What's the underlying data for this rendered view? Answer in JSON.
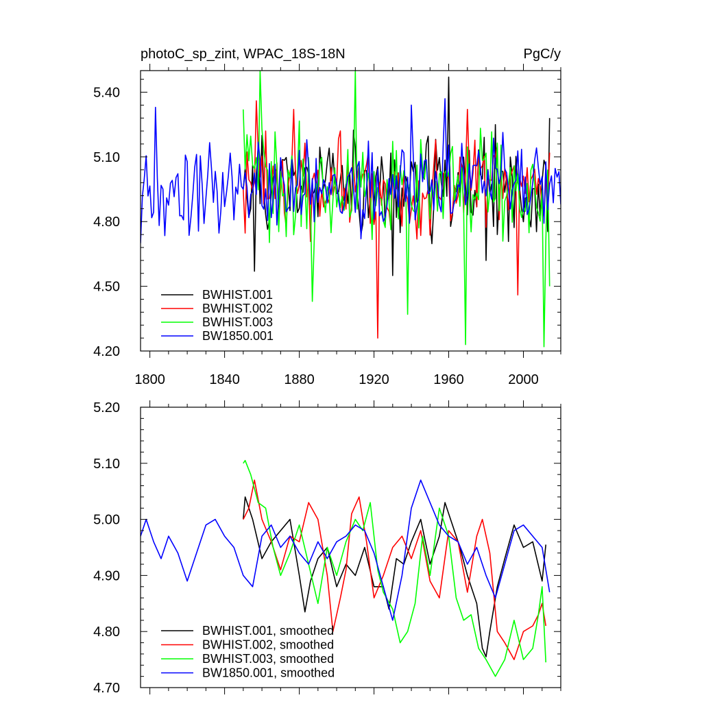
{
  "chart_data": [
    {
      "type": "line",
      "title": "photoC_sp_zint, WPAC_18S-18N",
      "units": "PgC/y",
      "xlim": [
        1795,
        2020
      ],
      "ylim": [
        4.2,
        5.5
      ],
      "xticks": [
        1800,
        1840,
        1880,
        1920,
        1960,
        2000
      ],
      "yticks": [
        4.2,
        4.5,
        4.8,
        5.1,
        5.4
      ],
      "ytick_labels": [
        "4.20",
        "4.50",
        "4.80",
        "5.10",
        "5.40"
      ],
      "legend_position": "lower-left",
      "series": [
        {
          "name": "BWHIST.001",
          "color": "#000000",
          "x_start": 1850,
          "x_end": 2014,
          "seed": 11,
          "mean": 4.96,
          "amp": 0.2,
          "x": [
            1850,
            1856,
            1860,
            1900,
            1930,
            1960,
            1980,
            2014
          ],
          "y": [
            4.95,
            4.57,
            5.2,
            4.93,
            4.55,
            5.47,
            4.62,
            5.28
          ]
        },
        {
          "name": "BWHIST.002",
          "color": "#ff0000",
          "x_start": 1850,
          "x_end": 2014,
          "seed": 23,
          "mean": 4.96,
          "amp": 0.2,
          "x": [
            1850,
            1857,
            1877,
            1922,
            1970,
            1997,
            2014
          ],
          "y": [
            4.95,
            5.36,
            5.32,
            4.26,
            5.32,
            4.46,
            5.12
          ]
        },
        {
          "name": "BWHIST.003",
          "color": "#00ff00",
          "x_start": 1850,
          "x_end": 2014,
          "seed": 37,
          "mean": 4.95,
          "amp": 0.22,
          "x": [
            1850,
            1859,
            1887,
            1910,
            1938,
            1969,
            2011,
            2014
          ],
          "y": [
            5.32,
            5.5,
            4.43,
            5.5,
            4.37,
            4.23,
            4.22,
            4.5
          ]
        },
        {
          "name": "BW1850.001",
          "color": "#0000ff",
          "x_start": 1795,
          "x_end": 2020,
          "seed": 53,
          "mean": 4.95,
          "amp": 0.18,
          "x": [
            1795,
            1803,
            1850,
            1940,
            1958,
            2020
          ],
          "y": [
            4.7,
            5.33,
            4.95,
            5.34,
            5.37,
            4.88
          ]
        }
      ]
    },
    {
      "type": "line",
      "title": "",
      "xlim": [
        1795,
        2020
      ],
      "ylim": [
        4.7,
        5.2
      ],
      "xticks": [
        1800,
        1840,
        1880,
        1920,
        1960,
        2000
      ],
      "yticks": [
        4.7,
        4.8,
        4.9,
        5.0,
        5.1,
        5.2
      ],
      "ytick_labels": [
        "4.70",
        "4.80",
        "4.90",
        "5.00",
        "5.10",
        "5.20"
      ],
      "legend_position": "lower-left",
      "series": [
        {
          "name": "BWHIST.001, smoothed",
          "color": "#000000",
          "x": [
            1850,
            1851,
            1855,
            1860,
            1865,
            1870,
            1875,
            1880,
            1883,
            1886,
            1890,
            1895,
            1900,
            1905,
            1910,
            1915,
            1920,
            1925,
            1928,
            1932,
            1936,
            1940,
            1945,
            1950,
            1955,
            1958,
            1962,
            1966,
            1970,
            1975,
            1978,
            1980,
            1982,
            1986,
            1990,
            1995,
            2000,
            2005,
            2010,
            2012
          ],
          "y": [
            5.0,
            5.04,
            5.0,
            4.93,
            4.96,
            4.98,
            5.0,
            4.9,
            4.835,
            4.89,
            4.93,
            4.95,
            4.88,
            4.92,
            4.9,
            4.95,
            4.88,
            4.88,
            4.84,
            4.93,
            4.92,
            4.96,
            5.0,
            4.92,
            4.97,
            5.03,
            4.99,
            4.95,
            4.9,
            4.85,
            4.77,
            4.755,
            4.8,
            4.88,
            4.93,
            4.99,
            4.95,
            4.96,
            4.89,
            4.955
          ]
        },
        {
          "name": "BWHIST.002, smoothed",
          "color": "#ff0000",
          "x": [
            1850,
            1853,
            1856,
            1860,
            1865,
            1870,
            1875,
            1880,
            1885,
            1890,
            1895,
            1898,
            1902,
            1905,
            1908,
            1912,
            1916,
            1920,
            1925,
            1930,
            1935,
            1940,
            1945,
            1950,
            1955,
            1960,
            1965,
            1970,
            1975,
            1978,
            1982,
            1986,
            1990,
            1995,
            2000,
            2005,
            2008,
            2010,
            2012
          ],
          "y": [
            5.0,
            5.02,
            5.07,
            5.0,
            4.96,
            4.91,
            4.97,
            4.96,
            5.03,
            5.0,
            4.9,
            4.8,
            4.86,
            4.91,
            5.01,
            5.04,
            4.96,
            4.86,
            4.9,
            4.95,
            4.97,
            4.93,
            4.98,
            4.89,
            4.86,
            4.98,
            4.96,
            4.87,
            4.97,
            5.0,
            4.94,
            4.8,
            4.78,
            4.75,
            4.8,
            4.81,
            4.83,
            4.85,
            4.81
          ]
        },
        {
          "name": "BWHIST.003, smoothed",
          "color": "#00ff00",
          "x": [
            1850,
            1851,
            1854,
            1858,
            1862,
            1866,
            1870,
            1875,
            1880,
            1885,
            1890,
            1895,
            1900,
            1905,
            1910,
            1914,
            1918,
            1922,
            1925,
            1930,
            1934,
            1938,
            1942,
            1946,
            1950,
            1955,
            1960,
            1964,
            1968,
            1972,
            1976,
            1980,
            1985,
            1990,
            1995,
            2000,
            2005,
            2008,
            2010,
            2012
          ],
          "y": [
            5.1,
            5.105,
            5.08,
            5.03,
            5.02,
            4.95,
            4.9,
            4.94,
            4.99,
            4.92,
            4.85,
            4.95,
            4.9,
            4.96,
            5.0,
            4.98,
            5.03,
            4.91,
            4.87,
            4.84,
            4.78,
            4.8,
            4.85,
            4.97,
            4.9,
            5.02,
            4.97,
            4.86,
            4.82,
            4.83,
            4.77,
            4.75,
            4.72,
            4.75,
            4.82,
            4.75,
            4.77,
            4.83,
            4.88,
            4.745
          ]
        },
        {
          "name": "BW1850.001, smoothed",
          "color": "#0000ff",
          "x": [
            1795,
            1798,
            1802,
            1806,
            1810,
            1815,
            1820,
            1825,
            1830,
            1835,
            1840,
            1845,
            1850,
            1855,
            1860,
            1865,
            1870,
            1875,
            1880,
            1885,
            1890,
            1895,
            1900,
            1905,
            1910,
            1915,
            1920,
            1925,
            1930,
            1935,
            1940,
            1945,
            1950,
            1955,
            1960,
            1965,
            1970,
            1975,
            1980,
            1985,
            1990,
            1995,
            2000,
            2005,
            2010,
            2014
          ],
          "y": [
            4.97,
            5.0,
            4.96,
            4.93,
            4.97,
            4.94,
            4.89,
            4.94,
            4.99,
            5.0,
            4.97,
            4.95,
            4.9,
            4.88,
            4.97,
            4.99,
            4.95,
            4.97,
            4.94,
            4.92,
            4.96,
            4.93,
            4.96,
            4.97,
            4.99,
            4.98,
            4.94,
            4.88,
            4.82,
            4.9,
            5.02,
            5.07,
            5.03,
            4.99,
            4.97,
            4.96,
            4.92,
            4.95,
            4.9,
            4.86,
            4.92,
            4.98,
            4.99,
            4.97,
            4.95,
            4.87
          ]
        }
      ]
    }
  ]
}
